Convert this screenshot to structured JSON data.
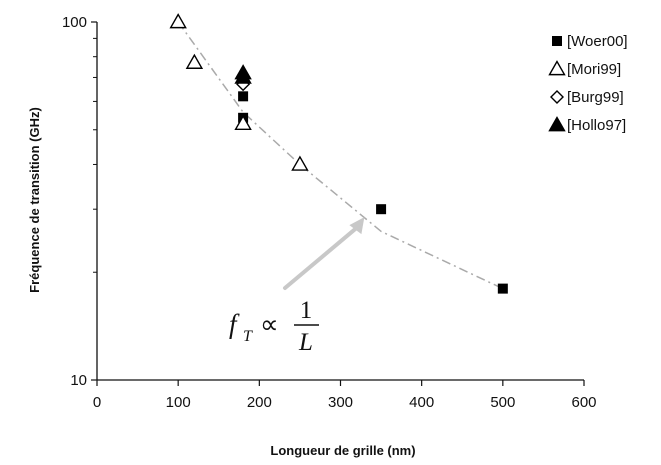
{
  "chart_data": {
    "type": "scatter",
    "xlabel": "Longueur de grille (nm)",
    "ylabel": "Fréquence de transition (GHz)",
    "xlim": [
      0,
      600
    ],
    "ylim": [
      10,
      100
    ],
    "y_scale": "log",
    "x_ticks": [
      "0",
      "100",
      "200",
      "300",
      "400",
      "500",
      "600"
    ],
    "y_ticks": [
      "10",
      "100"
    ],
    "grid": false,
    "legend_position": "right",
    "series": [
      {
        "name": "[Woer00]",
        "marker": "filled-square",
        "color": "#000000",
        "points": [
          {
            "x": 180,
            "y": 62
          },
          {
            "x": 180,
            "y": 54
          },
          {
            "x": 350,
            "y": 30
          },
          {
            "x": 500,
            "y": 18
          }
        ]
      },
      {
        "name": "[Mori99]",
        "marker": "open-triangle",
        "color": "#000000",
        "points": [
          {
            "x": 100,
            "y": 100
          },
          {
            "x": 120,
            "y": 77
          },
          {
            "x": 180,
            "y": 52
          },
          {
            "x": 250,
            "y": 40
          }
        ]
      },
      {
        "name": "[Burg99]",
        "marker": "open-diamond",
        "color": "#000000",
        "points": [
          {
            "x": 180,
            "y": 67
          }
        ]
      },
      {
        "name": "[Hollo97]",
        "marker": "filled-triangle",
        "color": "#000000",
        "points": [
          {
            "x": 180,
            "y": 72
          },
          {
            "x": 180,
            "y": 70
          }
        ]
      }
    ],
    "trend_line": {
      "style": "dash-dot",
      "color": "#aaaaaa",
      "points": [
        {
          "x": 100,
          "y": 100
        },
        {
          "x": 180,
          "y": 56
        },
        {
          "x": 250,
          "y": 40
        },
        {
          "x": 350,
          "y": 26
        },
        {
          "x": 500,
          "y": 18
        }
      ]
    },
    "annotation": {
      "formula": {
        "lhs": "f",
        "subscript": "T",
        "relation": "∝",
        "numerator": "1",
        "denominator": "L"
      },
      "arrow_color": "#c8c8c8",
      "arrow_target": {
        "x": 290,
        "y": 31
      }
    }
  }
}
